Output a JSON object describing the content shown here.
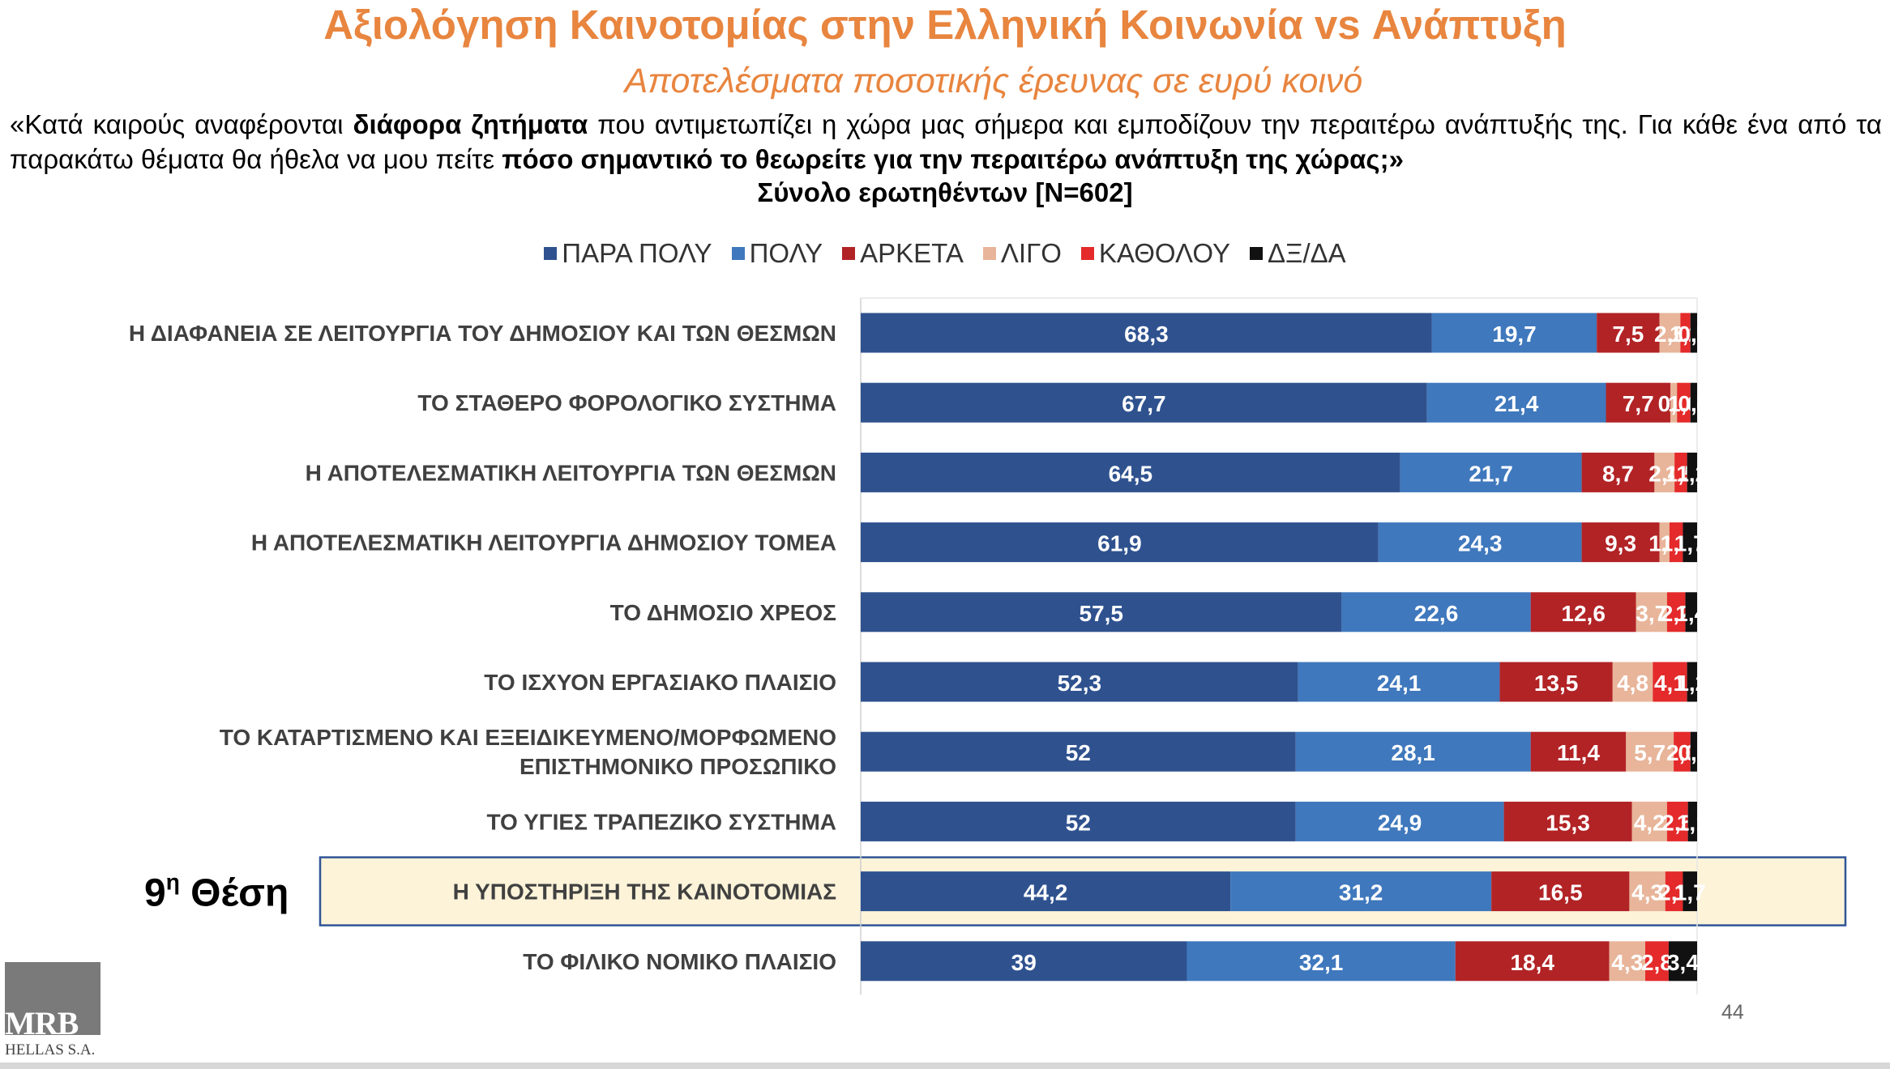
{
  "header": {
    "title": "Αξιολόγηση Καινοτομίας στην Ελληνική Κοινωνία vs Ανάπτυξη",
    "subtitle": "Αποτελέσματα ποσοτικής έρευνας σε ευρύ κοινό",
    "question_parts": [
      {
        "text": "«Κατά καιρούς αναφέρονται ",
        "bold": false
      },
      {
        "text": "διάφορα  ζητήματα",
        "bold": true
      },
      {
        "text": " που αντιμετωπίζει η χώρα μας σήμερα και εμποδίζουν την περαιτέρω ανάπτυξής της. Για κάθε ένα από τα παρακάτω θέματα θα ήθελα να μου  πείτε ",
        "bold": false
      },
      {
        "text": "πόσο σημαντικό το θεωρείτε για την περαιτέρω ανάπτυξη της χώρας;»",
        "bold": true
      }
    ],
    "sample": "Σύνολο ερωτηθέντων  [N=602]"
  },
  "highlight": {
    "label": "9η Θέση",
    "label_main": "9",
    "label_sup": "η",
    "label_rest": " Θέση",
    "row_index": 8,
    "fill_color": "#fcf3d9",
    "border_color": "#2f5597"
  },
  "footer": {
    "logo_text": "MRB",
    "logo_subtext": "HELLAS S.A.",
    "page_number": "44"
  },
  "chart_data": {
    "type": "bar",
    "orientation": "horizontal",
    "stacked": true,
    "legend_position": "top",
    "xlim": [
      0,
      100
    ],
    "grid": false,
    "categories": [
      "Η ΔΙΑΦΑΝΕΙΑ ΣΕ ΛΕΙΤΟΥΡΓΙΑ ΤΟΥ ΔΗΜΟΣΙΟΥ ΚΑΙ ΤΩΝ ΘΕΣΜΩΝ",
      "ΤΟ ΣΤΑΘΕΡΟ ΦΟΡΟΛΟΓΙΚΟ ΣΥΣΤΗΜΑ",
      "Η ΑΠΟΤΕΛΕΣΜΑΤΙΚΗ ΛΕΙΤΟΥΡΓΙΑ ΤΩΝ ΘΕΣΜΩΝ",
      "Η ΑΠΟΤΕΛΕΣΜΑΤΙΚΗ ΛΕΙΤΟΥΡΓΙΑ ΔΗΜΟΣΙΟΥ ΤΟΜΕΑ",
      "ΤΟ ΔΗΜΟΣΙΟ ΧΡΕΟΣ",
      "ΤΟ ΙΣΧΥΟΝ ΕΡΓΑΣΙΑΚΟ ΠΛΑΙΣΙΟ",
      "ΤΟ ΚΑΤΑΡΤΙΣΜΕΝΟ ΚΑΙ ΕΞΕΙΔΙΚΕΥΜΕΝΟ/ΜΟΡΦΩΜΕΝΟ ΕΠΙΣΤΗΜΟΝΙΚΟ ΠΡΟΣΩΠΙΚΟ",
      "ΤΟ ΥΓΙΕΣ ΤΡΑΠΕΖΙΚΟ ΣΥΣΤΗΜΑ",
      "Η ΥΠΟΣΤΗΡΙΞΗ ΤΗΣ ΚΑΙΝΟΤΟΜΙΑΣ",
      "ΤΟ ΦΙΛΙΚΟ ΝΟΜΙΚΟ ΠΛΑΙΣΙΟ"
    ],
    "category_lines": [
      [
        "Η ΔΙΑΦΑΝΕΙΑ ΣΕ ΛΕΙΤΟΥΡΓΙΑ ΤΟΥ ΔΗΜΟΣΙΟΥ ΚΑΙ ΤΩΝ ΘΕΣΜΩΝ"
      ],
      [
        "ΤΟ ΣΤΑΘΕΡΟ ΦΟΡΟΛΟΓΙΚΟ ΣΥΣΤΗΜΑ"
      ],
      [
        "Η ΑΠΟΤΕΛΕΣΜΑΤΙΚΗ ΛΕΙΤΟΥΡΓΙΑ ΤΩΝ ΘΕΣΜΩΝ"
      ],
      [
        "Η ΑΠΟΤΕΛΕΣΜΑΤΙΚΗ ΛΕΙΤΟΥΡΓΙΑ ΔΗΜΟΣΙΟΥ ΤΟΜΕΑ"
      ],
      [
        "ΤΟ ΔΗΜΟΣΙΟ ΧΡΕΟΣ"
      ],
      [
        "ΤΟ ΙΣΧΥΟΝ ΕΡΓΑΣΙΑΚΟ ΠΛΑΙΣΙΟ"
      ],
      [
        "ΤΟ ΚΑΤΑΡΤΙΣΜΕΝΟ ΚΑΙ ΕΞΕΙΔΙΚΕΥΜΕΝΟ/ΜΟΡΦΩΜΕΝΟ",
        "ΕΠΙΣΤΗΜΟΝΙΚΟ ΠΡΟΣΩΠΙΚΟ"
      ],
      [
        "ΤΟ ΥΓΙΕΣ ΤΡΑΠΕΖΙΚΟ ΣΥΣΤΗΜΑ"
      ],
      [
        "Η ΥΠΟΣΤΗΡΙΞΗ ΤΗΣ ΚΑΙΝΟΤΟΜΙΑΣ"
      ],
      [
        "ΤΟ ΦΙΛΙΚΟ ΝΟΜΙΚΟ ΠΛΑΙΣΙΟ"
      ]
    ],
    "series": [
      {
        "name": "ΠΑΡΑ ΠΟΛΥ",
        "color": "#2f528f",
        "values": [
          68.3,
          67.7,
          64.5,
          61.9,
          57.5,
          52.3,
          52,
          52,
          44.2,
          39
        ]
      },
      {
        "name": "ΠΟΛΥ",
        "color": "#3f78bd",
        "values": [
          19.7,
          21.4,
          21.7,
          24.3,
          22.6,
          24.1,
          28.1,
          24.9,
          31.2,
          32.1
        ]
      },
      {
        "name": "ΑΡΚΕΤΑ",
        "color": "#b22326",
        "values": [
          7.5,
          7.7,
          8.7,
          9.3,
          12.6,
          13.5,
          11.4,
          15.3,
          16.5,
          18.4
        ]
      },
      {
        "name": "ΛΙΓΟ",
        "color": "#e8b59a",
        "values": [
          2.5,
          0.8,
          2.4,
          1.2,
          3.7,
          4.8,
          5.7,
          4.2,
          4.3,
          4.3
        ]
      },
      {
        "name": "ΚΑΘΟΛΟΥ",
        "color": "#e42a2a",
        "values": [
          1.2,
          1.6,
          1.5,
          1.6,
          2.2,
          4.1,
          2.0,
          2.5,
          2.1,
          2.8
        ]
      },
      {
        "name": "ΔΞ/ΔΑ",
        "color": "#111111",
        "values": [
          0.8,
          0.8,
          1.2,
          1.7,
          1.4,
          1.2,
          0.8,
          1.1,
          1.7,
          3.4
        ]
      }
    ],
    "data_labels": [
      [
        "68,3",
        "19,7",
        "7,5",
        "2,5",
        "1,2",
        "0,8"
      ],
      [
        "67,7",
        "21,4",
        "7,7",
        "0,8",
        "1,6",
        "0,8"
      ],
      [
        "64,5",
        "21,7",
        "8,7",
        "2,4",
        "1,5",
        "1,2"
      ],
      [
        "61,9",
        "24,3",
        "9,3",
        "1,2",
        "1,6",
        "1,7"
      ],
      [
        "57,5",
        "22,6",
        "12,6",
        "3,7",
        "2,2",
        "1,4"
      ],
      [
        "52,3",
        "24,1",
        "13,5",
        "4,8",
        "4,1",
        "1,2"
      ],
      [
        "52",
        "28,1",
        "11,4",
        "5,7",
        "2,0",
        "0,8"
      ],
      [
        "52",
        "24,9",
        "15,3",
        "4,2",
        "2,5",
        "1,1"
      ],
      [
        "44,2",
        "31,2",
        "16,5",
        "4,3",
        "2,1",
        "1,7"
      ],
      [
        "39",
        "32,1",
        "18,4",
        "4,3",
        "2,8",
        "3,4"
      ]
    ]
  }
}
